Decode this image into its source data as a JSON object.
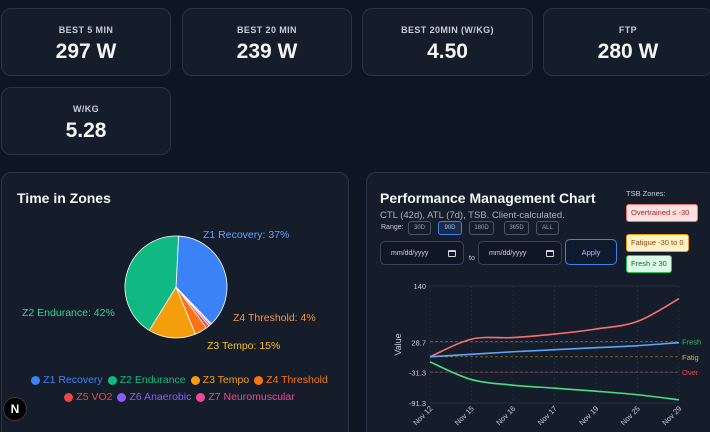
{
  "stats": [
    {
      "label": "BEST 5 MIN",
      "value": "297 W"
    },
    {
      "label": "BEST 20 MIN",
      "value": "239 W"
    },
    {
      "label": "BEST 20MIN (W/KG)",
      "value": "4.50"
    },
    {
      "label": "FTP",
      "value": "280 W"
    },
    {
      "label": "W/KG",
      "value": "5.28"
    }
  ],
  "zones_panel": {
    "title": "Time in Zones",
    "slice_labels": {
      "z1": "Z1 Recovery: 37%",
      "z2": "Z2 Endurance: 42%",
      "z3": "Z3 Tempo: 15%",
      "z4": "Z4 Threshold: 4%"
    }
  },
  "pmc_panel": {
    "title": "Performance Management Chart",
    "subtitle": "CTL (42d), ATL (7d), TSB. Client-calculated.",
    "range_label": "Range:",
    "ranges": [
      "30D",
      "90D",
      "180D",
      "365D",
      "ALL"
    ],
    "active_range": "90D",
    "date_from_placeholder": "mm/dd/yyyy",
    "date_to_label": "to",
    "date_to_placeholder": "mm/dd/yyyy",
    "apply_label": "Apply",
    "tsb_zones": {
      "title": "TSB Zones:",
      "items": [
        {
          "label": "Overtrained ≤ -30",
          "color": "#ef4444"
        },
        {
          "label": "Fatigue -30 to 0",
          "color": "#eab308"
        },
        {
          "label": "Fresh ≥ 30",
          "color": "#22c55e"
        }
      ]
    },
    "line_labels": {
      "fresh": "Fresh",
      "fatigue": "Fatig",
      "over": "Over"
    }
  },
  "nav_badge": "N",
  "chart_data": [
    {
      "type": "pie",
      "title": "Time in Zones",
      "categories": [
        "Z1 Recovery",
        "Z2 Endurance",
        "Z3 Tempo",
        "Z4 Threshold",
        "Z5 VO2",
        "Z6 Anaerobic",
        "Z7 Neuromuscular"
      ],
      "values": [
        37,
        42,
        15,
        4,
        1,
        0.6,
        0.4
      ],
      "colors": [
        "#3b82f6",
        "#10b981",
        "#f59e0b",
        "#f97316",
        "#ef4444",
        "#8b5cf6",
        "#ec4899"
      ],
      "legend": "bottom"
    },
    {
      "type": "line",
      "title": "Performance Management Chart",
      "xlabel": "",
      "ylabel": "Value",
      "x": [
        "Nov 12",
        "Nov 15",
        "Nov 16",
        "Nov 17",
        "Nov 19",
        "Nov 25",
        "Nov 29"
      ],
      "yticks": [
        140,
        28.7,
        -31.3,
        -91.3
      ],
      "ylim": [
        -91.3,
        140
      ],
      "grid": true,
      "series": [
        {
          "name": "ATL",
          "color": "#f87171",
          "values": [
            0,
            35,
            38,
            45,
            55,
            70,
            115
          ]
        },
        {
          "name": "CTL",
          "color": "#60a5fa",
          "values": [
            0,
            5,
            10,
            14,
            18,
            22,
            28
          ]
        },
        {
          "name": "TSB",
          "color": "#4ade80",
          "values": [
            -10,
            -45,
            -56,
            -62,
            -68,
            -75,
            -85
          ]
        }
      ],
      "reference_lines": [
        {
          "name": "Fresh",
          "value": 30,
          "color": "#22c55e"
        },
        {
          "name": "Fatigue",
          "value": 0,
          "color": "#eab308"
        },
        {
          "name": "Overtrained",
          "value": -30,
          "color": "#ef4444"
        }
      ]
    }
  ]
}
